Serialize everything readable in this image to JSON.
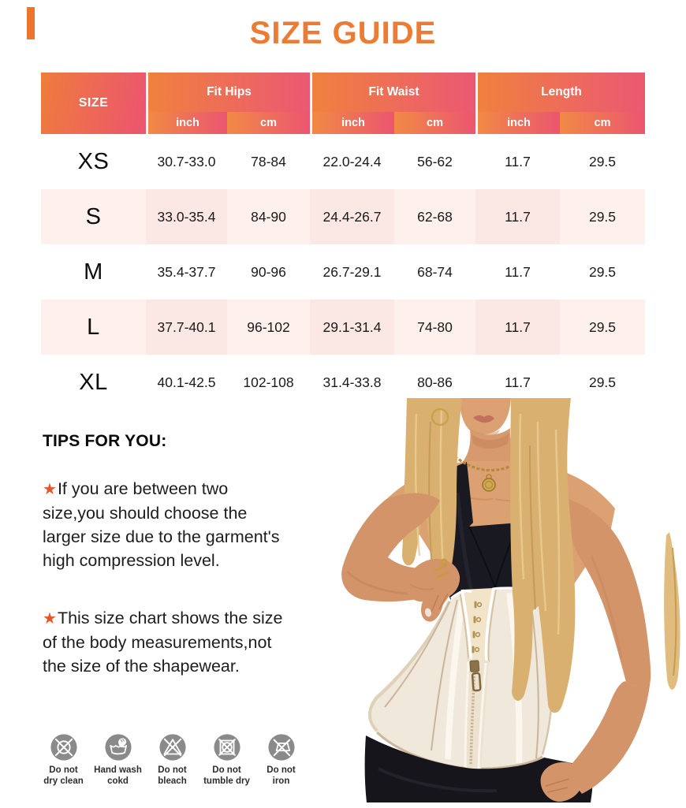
{
  "title": "SIZE GUIDE",
  "table": {
    "size_header": "SIZE",
    "groups": [
      {
        "label": "Fit Hips",
        "units": [
          "inch",
          "cm"
        ]
      },
      {
        "label": "Fit Waist",
        "units": [
          "inch",
          "cm"
        ]
      },
      {
        "label": "Length",
        "units": [
          "inch",
          "cm"
        ]
      }
    ],
    "rows": [
      {
        "size": "XS",
        "values": [
          "30.7-33.0",
          "78-84",
          "22.0-24.4",
          "56-62",
          "11.7",
          "29.5"
        ]
      },
      {
        "size": "S",
        "values": [
          "33.0-35.4",
          "84-90",
          "24.4-26.7",
          "62-68",
          "11.7",
          "29.5"
        ]
      },
      {
        "size": "M",
        "values": [
          "35.4-37.7",
          "90-96",
          "26.7-29.1",
          "68-74",
          "11.7",
          "29.5"
        ]
      },
      {
        "size": "L",
        "values": [
          "37.7-40.1",
          "96-102",
          "29.1-31.4",
          "74-80",
          "11.7",
          "29.5"
        ]
      },
      {
        "size": "XL",
        "values": [
          "40.1-42.5",
          "102-108",
          "31.4-33.8",
          "80-86",
          "11.7",
          "29.5"
        ]
      }
    ]
  },
  "tips": {
    "heading": "TIPS FOR YOU:",
    "bullet_icon": "★",
    "items": [
      {
        "lines": [
          "If you are between two",
          "size,you should choose the",
          "larger size due to the garment's",
          "high compression level."
        ]
      },
      {
        "lines": [
          "This size chart shows the size",
          "of the body measurements,not",
          "the size of the shapewear."
        ]
      }
    ]
  },
  "care": {
    "items": [
      {
        "icon": "do-not-dry-clean-icon",
        "lines": [
          "Do not",
          "dry clean"
        ]
      },
      {
        "icon": "hand-wash-icon",
        "lines": [
          "Hand wash",
          "cokd"
        ]
      },
      {
        "icon": "do-not-bleach-icon",
        "lines": [
          "Do not",
          "bleach"
        ]
      },
      {
        "icon": "do-not-tumble-dry-icon",
        "lines": [
          "Do not",
          "tumble dry"
        ]
      },
      {
        "icon": "do-not-iron-icon",
        "lines": [
          "Do not",
          "iron"
        ]
      }
    ]
  },
  "colors": {
    "accent_orange": "#EC7B33",
    "header_gradient_start": "#F28A44",
    "header_gradient_end": "#EC5470",
    "alt_row_pink": "#FBE8E5",
    "alt_row_pink_light": "#FDF0ED",
    "care_icon_gray": "#8A8A8A",
    "star_orange": "#E4562C"
  }
}
